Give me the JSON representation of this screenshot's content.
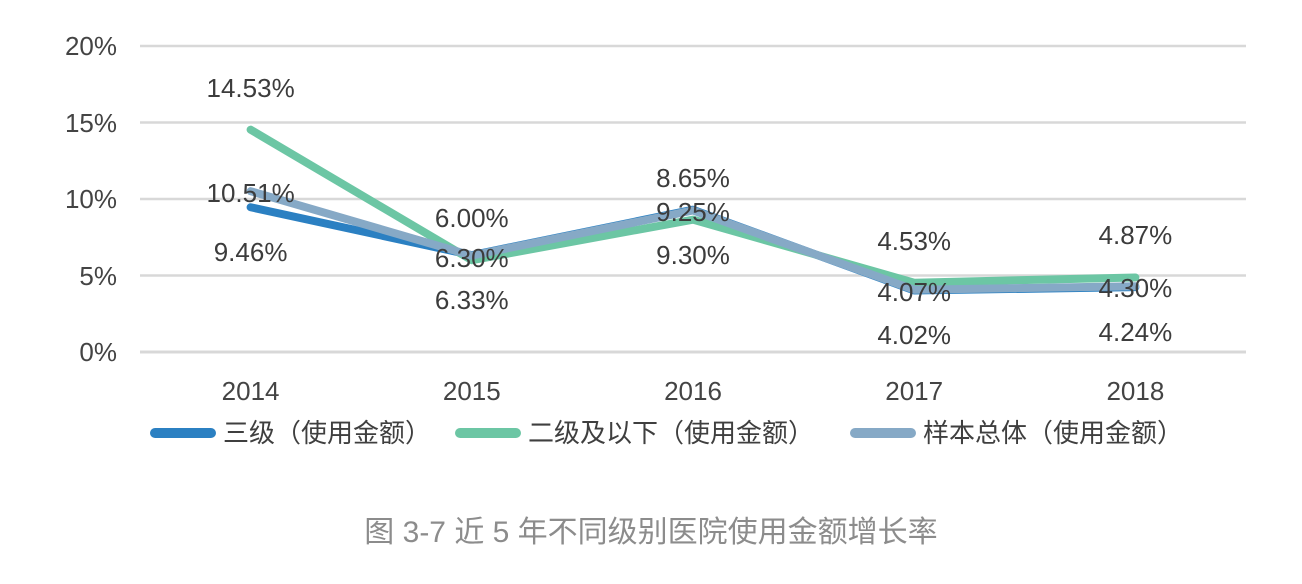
{
  "chart_data": {
    "type": "line",
    "title": "图 3-7 近 5 年不同级别医院使用金额增长率",
    "categories": [
      "2014",
      "2015",
      "2016",
      "2017",
      "2018"
    ],
    "series": [
      {
        "name": "三级（使用金额）",
        "color": "#2b80c2",
        "values": [
          9.46,
          6.33,
          9.3,
          4.02,
          4.24
        ]
      },
      {
        "name": "二级及以下（使用金额）",
        "color": "#6cc6a4",
        "values": [
          14.53,
          6.0,
          8.65,
          4.53,
          4.87
        ]
      },
      {
        "name": "样本总体（使用金额）",
        "color": "#86a9c6",
        "values": [
          10.51,
          6.3,
          9.25,
          4.07,
          4.3
        ]
      }
    ],
    "data_label_format": "0.00%",
    "y_ticks": [
      {
        "label": "0%",
        "value": 0
      },
      {
        "label": "5%",
        "value": 5
      },
      {
        "label": "10%",
        "value": 10
      },
      {
        "label": "15%",
        "value": 15
      },
      {
        "label": "20%",
        "value": 20
      }
    ],
    "ylim": [
      0,
      20
    ],
    "grid": true,
    "gridline_color": "#d8d8d8",
    "legend_position": "bottom",
    "text_colors": {
      "axis": "#444444",
      "data_label": "#3c3c3c",
      "caption": "#8c8c8c"
    }
  }
}
